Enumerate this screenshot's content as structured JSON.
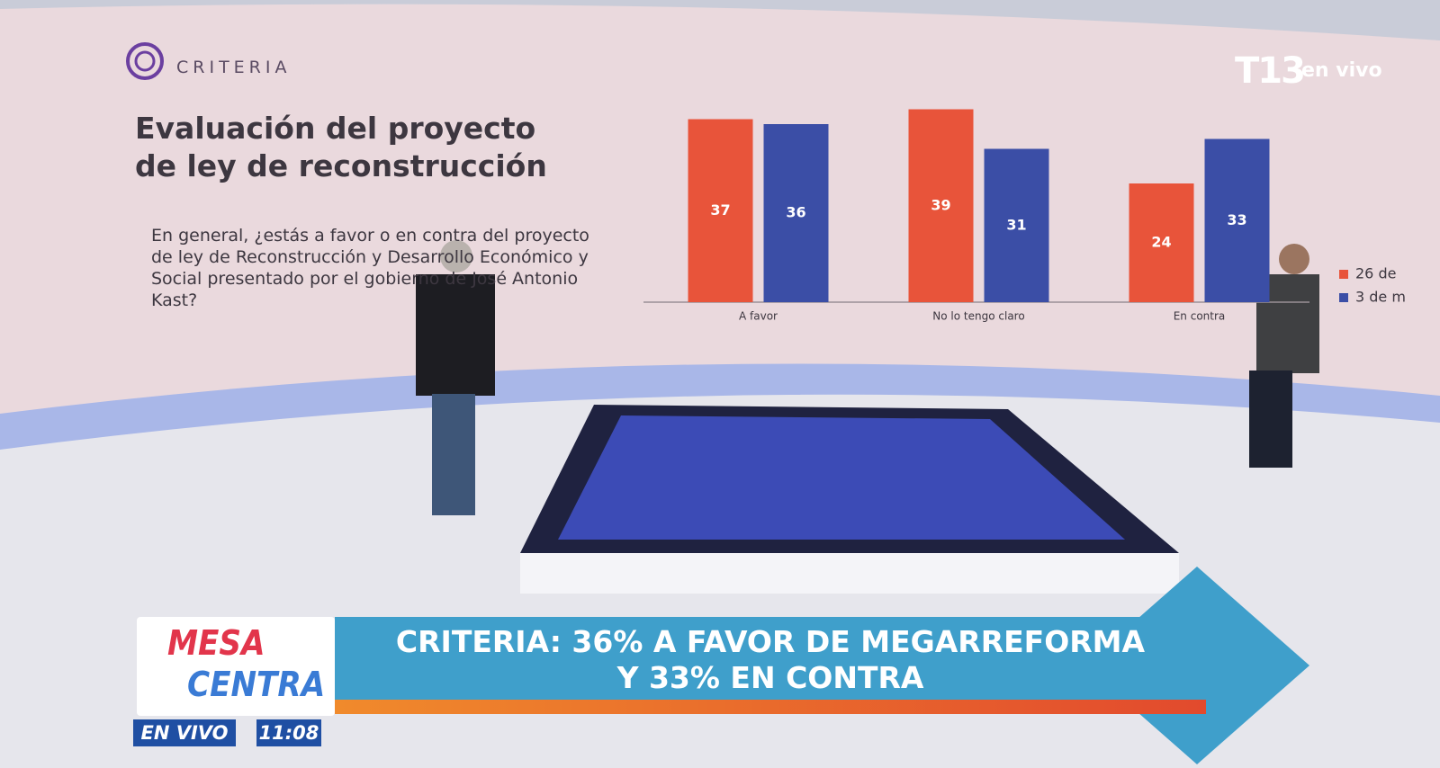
{
  "logo": "CRITERIA",
  "chart_data": {
    "type": "bar",
    "title": "Evaluación del proyecto de ley de reconstrucción",
    "subtitle": "En general, ¿estás a favor o en contra del proyecto de ley de Reconstrucción y Desarrollo Económico y Social presentado por el gobierno de José Antonio Kast?",
    "categories": [
      "A favor",
      "No lo tengo claro",
      "En contra"
    ],
    "series": [
      {
        "name": "26 de",
        "color": "#e8543a",
        "values": [
          37,
          39,
          24
        ]
      },
      {
        "name": "3 de m",
        "color": "#3b4ea6",
        "values": [
          36,
          31,
          33
        ]
      }
    ]
  },
  "broadcast": {
    "channel": "T13",
    "channel_status": "en vivo",
    "show": [
      "MESA",
      "CENTRA"
    ],
    "headline": [
      "CRITERIA: 36% A FAVOR DE MEGARREFORMA",
      "Y 33% EN CONTRA"
    ],
    "live": "EN VIVO",
    "time": "11:08"
  }
}
